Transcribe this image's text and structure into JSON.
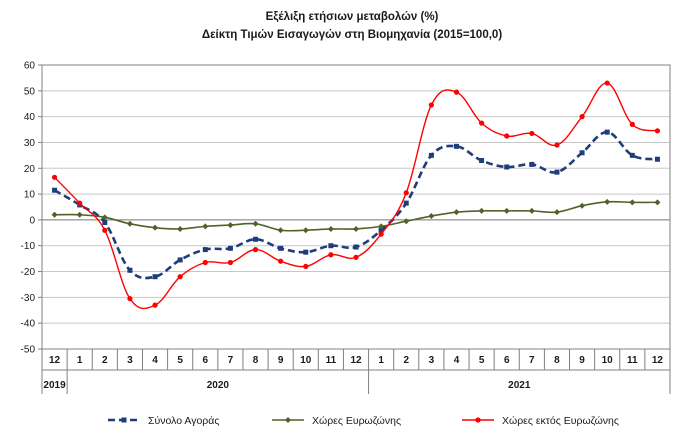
{
  "chart_data": {
    "type": "line",
    "title": "Εξέλιξη ετήσιων μεταβολών (%)",
    "subtitle": "Δείκτη Τιμών Εισαγωγών στη Βιομηχανία (2015=100,0)",
    "ylim": [
      -50,
      60
    ],
    "yticks": [
      60,
      50,
      40,
      30,
      20,
      10,
      0,
      -10,
      -20,
      -30,
      -40,
      -50
    ],
    "grid": true,
    "legend": "bottom",
    "categories": [
      "12",
      "1",
      "2",
      "3",
      "4",
      "5",
      "6",
      "7",
      "8",
      "9",
      "10",
      "11",
      "12",
      "1",
      "2",
      "3",
      "4",
      "5",
      "6",
      "7",
      "8",
      "9",
      "10",
      "11",
      "12"
    ],
    "years": [
      {
        "label": "2019",
        "start": 0,
        "end": 0
      },
      {
        "label": "2020",
        "start": 1,
        "end": 12
      },
      {
        "label": "2021",
        "start": 13,
        "end": 24
      }
    ],
    "series": [
      {
        "name": "Σύνολο Αγοράς",
        "color": "#1f3d7a",
        "values": [
          11.5,
          5.8,
          -1,
          -19.5,
          -22,
          -15.5,
          -11.5,
          -11,
          -7.5,
          -11,
          -12.5,
          -10,
          -10.5,
          -4,
          6.5,
          25,
          28.5,
          23,
          20.5,
          21.5,
          18.5,
          26,
          34,
          25,
          23.5
        ]
      },
      {
        "name": "Χώρες Ευρωζώνης",
        "color": "#4f6228",
        "values": [
          2,
          2,
          1,
          -1.5,
          -3,
          -3.5,
          -2.5,
          -2,
          -1.5,
          -4,
          -4,
          -3.5,
          -3.5,
          -2.5,
          -0.5,
          1.5,
          3,
          3.5,
          3.5,
          3.5,
          3,
          5.5,
          7,
          6.8,
          6.8
        ]
      },
      {
        "name": "Χώρες εκτός Ευρωζώνης",
        "color": "#ff0000",
        "values": [
          16.5,
          6.5,
          -4,
          -30.5,
          -33,
          -22,
          -16.5,
          -16.5,
          -11.5,
          -16,
          -18,
          -13.5,
          -14.5,
          -5.5,
          10.5,
          44.5,
          49.5,
          37.5,
          32.5,
          33.5,
          29,
          40,
          53,
          37,
          34.5
        ]
      }
    ]
  }
}
